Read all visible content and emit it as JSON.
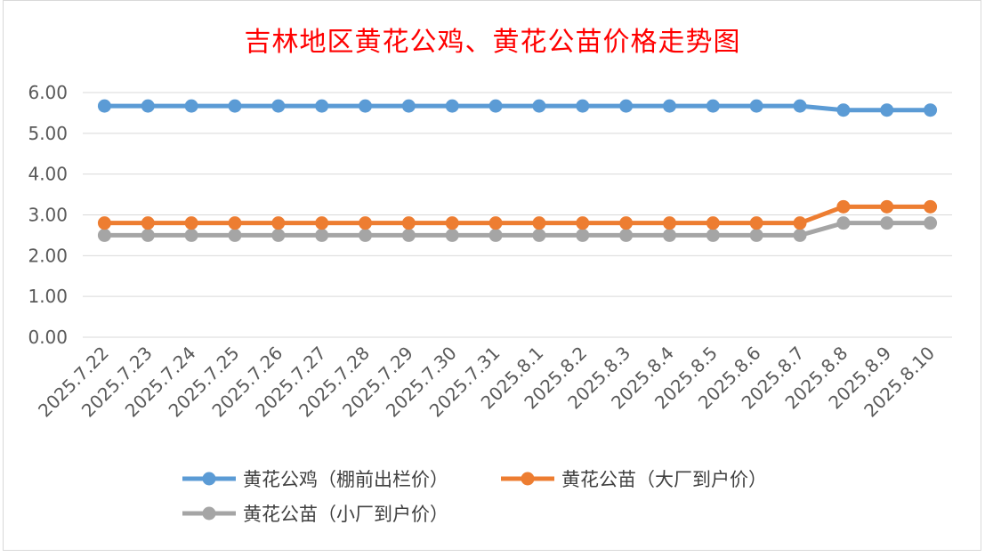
{
  "chart_data": {
    "type": "line",
    "title": "吉林地区黄花公鸡、黄花公苗价格走势图",
    "title_color": "#ff0000",
    "categories": [
      "2025.7.22",
      "2025.7.23",
      "2025.7.24",
      "2025.7.25",
      "2025.7.26",
      "2025.7.27",
      "2025.7.28",
      "2025.7.29",
      "2025.7.30",
      "2025.7.31",
      "2025.8.1",
      "2025.8.2",
      "2025.8.3",
      "2025.8.4",
      "2025.8.5",
      "2025.8.6",
      "2025.8.7",
      "2025.8.8",
      "2025.8.9",
      "2025.8.10"
    ],
    "y_ticks": [
      "0.00",
      "1.00",
      "2.00",
      "3.00",
      "4.00",
      "5.00",
      "6.00"
    ],
    "ylim": [
      0,
      6
    ],
    "grid": true,
    "legend_position": "bottom",
    "series": [
      {
        "name": "黄花公鸡（棚前出栏价）",
        "color": "#5b9bd5",
        "values": [
          5.67,
          5.67,
          5.67,
          5.67,
          5.67,
          5.67,
          5.67,
          5.67,
          5.67,
          5.67,
          5.67,
          5.67,
          5.67,
          5.67,
          5.67,
          5.67,
          5.67,
          5.57,
          5.57,
          5.57
        ]
      },
      {
        "name": "黄花公苗（大厂到户价）",
        "color": "#ed7d31",
        "values": [
          2.8,
          2.8,
          2.8,
          2.8,
          2.8,
          2.8,
          2.8,
          2.8,
          2.8,
          2.8,
          2.8,
          2.8,
          2.8,
          2.8,
          2.8,
          2.8,
          2.8,
          3.2,
          3.2,
          3.2
        ]
      },
      {
        "name": "黄花公苗（小厂到户价）",
        "color": "#a5a5a5",
        "values": [
          2.5,
          2.5,
          2.5,
          2.5,
          2.5,
          2.5,
          2.5,
          2.5,
          2.5,
          2.5,
          2.5,
          2.5,
          2.5,
          2.5,
          2.5,
          2.5,
          2.5,
          2.8,
          2.8,
          2.8
        ]
      }
    ]
  }
}
